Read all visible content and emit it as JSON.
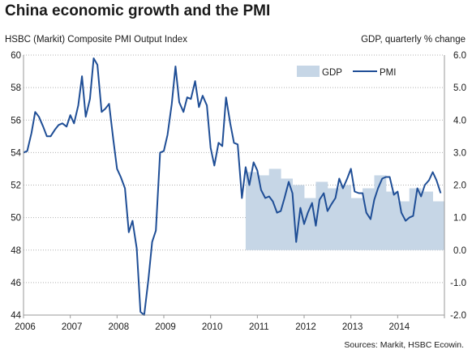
{
  "title": "China economic growth and the PMI",
  "left_axis_label": "HSBC (Markit) Composite PMI Output Index",
  "right_axis_label": "GDP, quarterly % change",
  "source": "Sources: Markit, HSBC Ecowin.",
  "colors": {
    "pmi": "#1f4e96",
    "gdp": "#c6d6e6",
    "axis": "#999999"
  },
  "chart_data": {
    "type": "bar+line",
    "title": "China economic growth and the PMI",
    "x_ticks": [
      "2006",
      "2007",
      "2008",
      "2009",
      "2010",
      "2011",
      "2012",
      "2013",
      "2014"
    ],
    "xlim": [
      2006.0,
      2015.0
    ],
    "left_axis": {
      "label": "HSBC (Markit) Composite PMI Output Index",
      "ylim": [
        44,
        60
      ],
      "ticks": [
        "44",
        "46",
        "48",
        "50",
        "52",
        "54",
        "56",
        "58",
        "60"
      ]
    },
    "right_axis": {
      "label": "GDP, quarterly % change",
      "ylim": [
        -2.0,
        6.0
      ],
      "ticks": [
        "-2.0",
        "-1.0",
        "0.0",
        "1.0",
        "2.0",
        "3.0",
        "4.0",
        "5.0",
        "6.0"
      ]
    },
    "legend": {
      "position": "top-right",
      "entries": [
        "GDP",
        "PMI"
      ]
    },
    "series": [
      {
        "name": "GDP",
        "type": "bar",
        "axis": "right",
        "x": [
          2010.75,
          2011.0,
          2011.25,
          2011.5,
          2011.75,
          2012.0,
          2012.25,
          2012.5,
          2012.75,
          2013.0,
          2013.25,
          2013.5,
          2013.75,
          2014.0,
          2014.25,
          2014.5,
          2014.75
        ],
        "values": [
          2.4,
          2.3,
          2.5,
          2.2,
          2.0,
          1.6,
          2.1,
          1.9,
          2.0,
          1.6,
          1.9,
          2.3,
          1.8,
          1.5,
          1.9,
          1.8,
          1.5
        ]
      },
      {
        "name": "PMI",
        "type": "line",
        "axis": "left",
        "x": [
          2006.0,
          2006.08,
          2006.17,
          2006.25,
          2006.33,
          2006.42,
          2006.5,
          2006.58,
          2006.67,
          2006.75,
          2006.83,
          2006.92,
          2007.0,
          2007.08,
          2007.17,
          2007.25,
          2007.33,
          2007.42,
          2007.5,
          2007.58,
          2007.67,
          2007.75,
          2007.83,
          2007.92,
          2008.0,
          2008.08,
          2008.17,
          2008.25,
          2008.33,
          2008.42,
          2008.5,
          2008.58,
          2008.67,
          2008.75,
          2008.83,
          2008.92,
          2009.0,
          2009.08,
          2009.17,
          2009.25,
          2009.33,
          2009.42,
          2009.5,
          2009.58,
          2009.67,
          2009.75,
          2009.83,
          2009.92,
          2010.0,
          2010.08,
          2010.17,
          2010.25,
          2010.33,
          2010.42,
          2010.5,
          2010.58,
          2010.67,
          2010.75,
          2010.83,
          2010.92,
          2011.0,
          2011.08,
          2011.17,
          2011.25,
          2011.33,
          2011.42,
          2011.5,
          2011.58,
          2011.67,
          2011.75,
          2011.83,
          2011.92,
          2012.0,
          2012.08,
          2012.17,
          2012.25,
          2012.33,
          2012.42,
          2012.5,
          2012.58,
          2012.67,
          2012.75,
          2012.83,
          2012.92,
          2013.0,
          2013.08,
          2013.17,
          2013.25,
          2013.33,
          2013.42,
          2013.5,
          2013.58,
          2013.67,
          2013.75,
          2013.83,
          2013.92,
          2014.0,
          2014.08,
          2014.17,
          2014.25,
          2014.33,
          2014.42,
          2014.5,
          2014.58,
          2014.67,
          2014.75,
          2014.83,
          2014.92
        ],
        "values": [
          54.0,
          54.1,
          55.2,
          56.5,
          56.2,
          55.6,
          55.0,
          55.0,
          55.4,
          55.7,
          55.8,
          55.6,
          56.3,
          55.8,
          56.9,
          58.7,
          56.2,
          57.3,
          59.8,
          59.4,
          56.5,
          56.7,
          57.0,
          54.8,
          53.0,
          52.5,
          51.8,
          49.1,
          49.8,
          48.1,
          44.2,
          44.0,
          46.2,
          48.5,
          49.2,
          54.0,
          54.1,
          55.1,
          57.0,
          59.3,
          57.1,
          56.5,
          57.4,
          57.3,
          58.4,
          56.8,
          57.5,
          56.9,
          54.3,
          53.2,
          54.6,
          54.4,
          57.4,
          55.8,
          54.6,
          54.5,
          51.2,
          53.1,
          52.0,
          53.4,
          52.9,
          51.7,
          51.2,
          51.3,
          51.0,
          50.3,
          50.4,
          51.2,
          52.2,
          51.5,
          48.5,
          50.6,
          49.6,
          50.3,
          50.9,
          49.5,
          51.1,
          51.5,
          50.4,
          50.8,
          51.2,
          52.4,
          51.8,
          52.4,
          53.0,
          51.6,
          51.5,
          51.5,
          50.3,
          49.9,
          51.1,
          51.8,
          52.4,
          52.5,
          52.5,
          51.4,
          51.6,
          50.3,
          49.8,
          50.0,
          50.1,
          51.8,
          51.3,
          52.0,
          52.3,
          52.8,
          52.3,
          51.5
        ]
      }
    ]
  }
}
